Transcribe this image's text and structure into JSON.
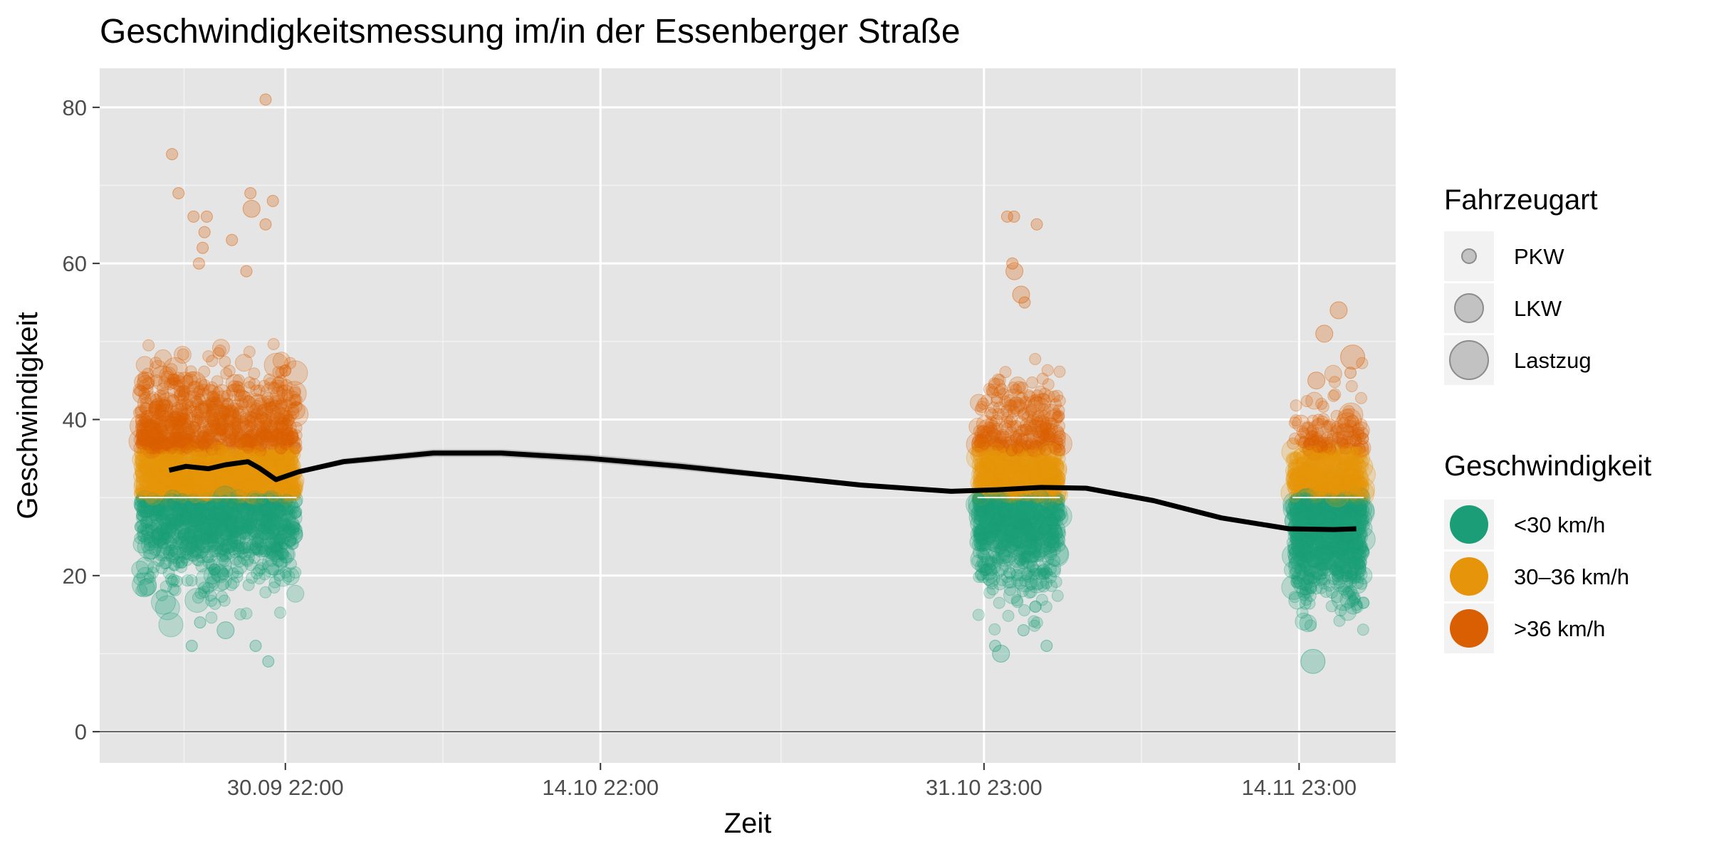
{
  "chart_data": {
    "type": "scatter",
    "title": "Geschwindigkeitsmessung im/in der Essenberger Straße",
    "xlabel": "Zeit",
    "ylabel": "Geschwindigkeit",
    "ylim": [
      -4,
      85
    ],
    "yticks": [
      0,
      20,
      40,
      60,
      80
    ],
    "xlim": [
      "2023-09-22T16:00",
      "2023-11-19T06:00"
    ],
    "xticks": [
      {
        "label": "30.09 22:00",
        "value": "2023-09-30T22:00"
      },
      {
        "label": "14.10 22:00",
        "value": "2023-10-14T22:00"
      },
      {
        "label": "31.10 23:00",
        "value": "2023-10-31T23:00"
      },
      {
        "label": "14.11 23:00",
        "value": "2023-11-14T23:00"
      }
    ],
    "x_minor_gridlines": [
      "2023-09-26T10:00",
      "2023-10-07T22:00",
      "2023-10-22T22:30",
      "2023-11-07T23:00"
    ],
    "grid": true,
    "background": "#e5e5e5",
    "legend_position": "right",
    "measurement_periods": [
      {
        "start": "2023-09-24T10:00",
        "end": "2023-10-01T10:00",
        "speed_range": [
          13,
          58
        ],
        "outliers": [
          81,
          74,
          69,
          69,
          68,
          67,
          66,
          66,
          65,
          64,
          63,
          62,
          60,
          59,
          11,
          9,
          11,
          13,
          14
        ]
      },
      {
        "start": "2023-10-31T16:00",
        "end": "2023-11-04T08:00",
        "speed_range": [
          12,
          55
        ],
        "outliers": [
          66,
          66,
          65,
          60,
          59,
          56,
          55,
          11,
          11,
          10,
          13
        ]
      },
      {
        "start": "2023-11-14T16:00",
        "end": "2023-11-17T20:00",
        "speed_range": [
          12,
          51
        ],
        "outliers": [
          54,
          51,
          48,
          46,
          45,
          9
        ]
      }
    ],
    "trend_line": {
      "x": [
        "2023-09-25T18:00",
        "2023-09-26T12:00",
        "2023-09-27T12:00",
        "2023-09-28T06:00",
        "2023-09-29T06:00",
        "2023-09-29T18:00",
        "2023-09-30T12:00",
        "2023-10-01T12:00",
        "2023-10-03T12:00",
        "2023-10-07T12:00",
        "2023-10-10T12:00",
        "2023-10-14T12:00",
        "2023-10-18T12:00",
        "2023-10-22T12:00",
        "2023-10-26T12:00",
        "2023-10-30T12:00",
        "2023-11-01T12:00",
        "2023-11-03T12:00",
        "2023-11-05T12:00",
        "2023-11-08T12:00",
        "2023-11-11T12:00",
        "2023-11-14T12:00",
        "2023-11-16T12:00",
        "2023-11-17T12:00"
      ],
      "y": [
        33.5,
        34.0,
        33.7,
        34.2,
        34.6,
        33.8,
        32.3,
        33.3,
        34.6,
        35.7,
        35.7,
        35.0,
        34.0,
        32.8,
        31.6,
        30.8,
        31.0,
        31.3,
        31.2,
        29.6,
        27.4,
        26.0,
        25.9,
        26.0
      ],
      "ci_halfwidth": [
        0.3,
        0.3,
        0.3,
        0.3,
        0.3,
        0.3,
        0.3,
        0.3,
        0.4,
        0.5,
        0.5,
        0.5,
        0.5,
        0.4,
        0.3,
        0.2,
        0.2,
        0.2,
        0.3,
        0.3,
        0.3,
        0.3,
        0.3,
        0.3
      ],
      "color": "#000000",
      "ci_color": "#999999"
    },
    "series": [
      {
        "name": "<30 km/h",
        "color": "#1b9e77",
        "range": [
          0,
          30
        ]
      },
      {
        "name": "30–36 km/h",
        "color": "#e6940a",
        "range": [
          30,
          36
        ]
      },
      {
        "name": ">36 km/h",
        "color": "#d95f02",
        "range": [
          36,
          100
        ]
      }
    ],
    "size_legend": {
      "title": "Fahrzeugart",
      "items": [
        "PKW",
        "LKW",
        "Lastzug"
      ]
    },
    "color_legend": {
      "title": "Geschwindigkeit"
    }
  }
}
